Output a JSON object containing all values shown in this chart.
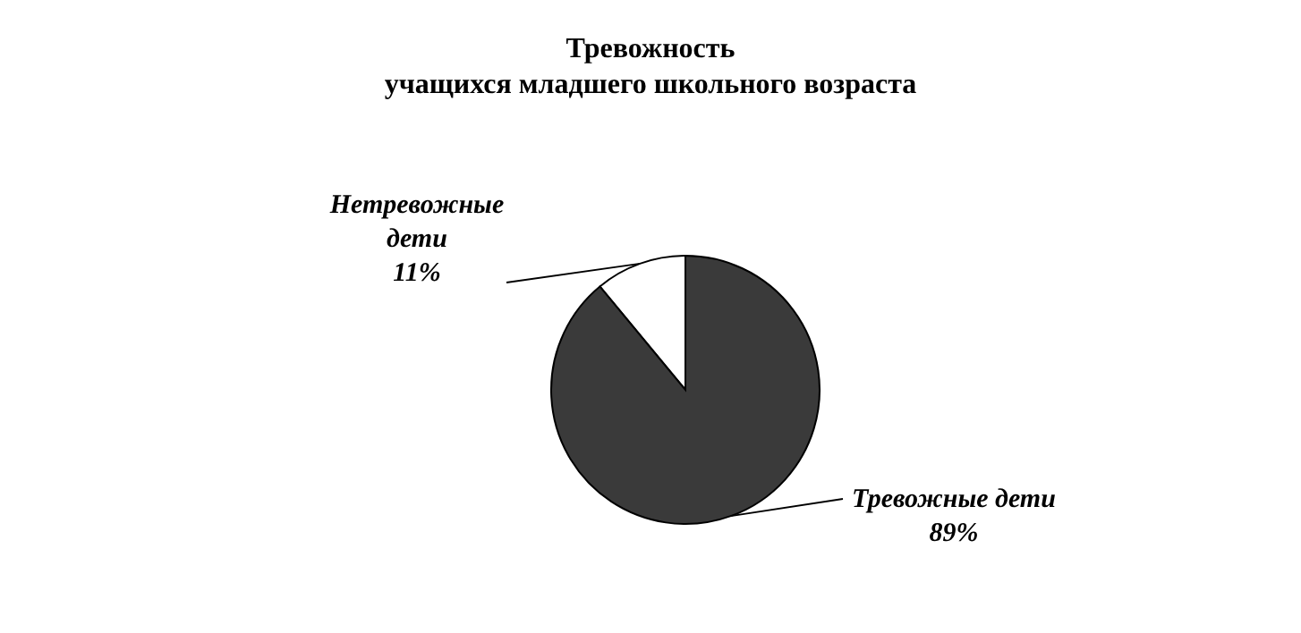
{
  "chart_data": {
    "type": "pie",
    "title": "Тревожность\nучащихся младшего школьного возраста",
    "categories": [
      "Нетревожные дети",
      "Тревожные дети"
    ],
    "values": [
      11,
      89
    ],
    "colors": [
      "#ffffff",
      "#3a3a3a"
    ],
    "value_labels": [
      "11%",
      "89%"
    ]
  }
}
